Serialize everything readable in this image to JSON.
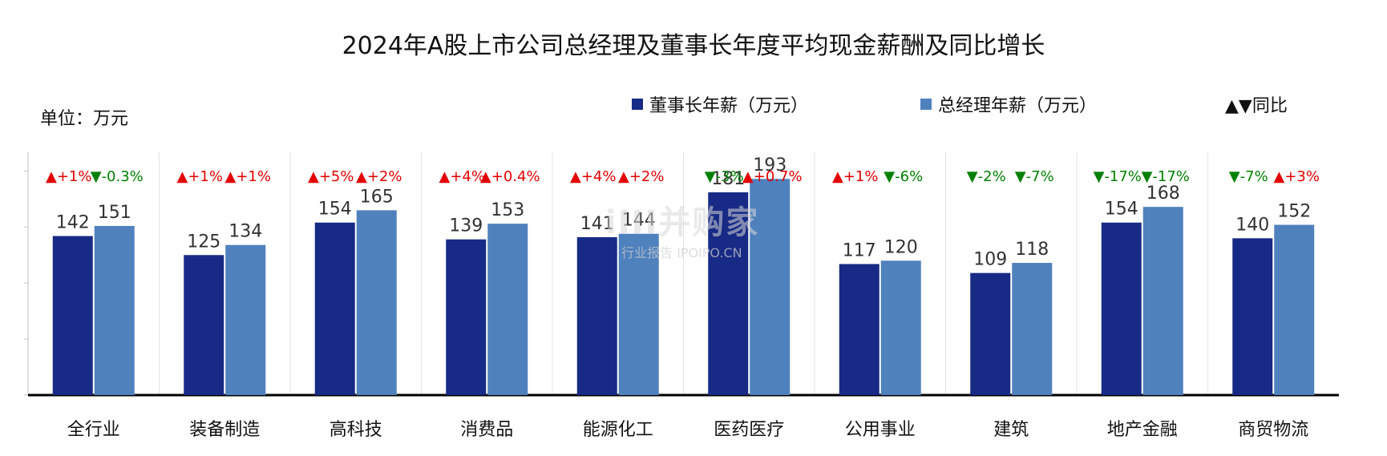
{
  "title": "2024年A股上市公司总经理及董事长年度平均现金薪酬及同比增长",
  "unit_label": "单位：万元",
  "legend": {
    "chairman": "董事长年薪（万元）",
    "gm": "总经理年薪（万元）",
    "yoy": "▲▼同比"
  },
  "watermark": {
    "logo": "iIII并购家",
    "sub": "行业报告 IPOIPO.CN"
  },
  "colors": {
    "chairman": "#172a85",
    "gm": "#4f81bd",
    "up": "#e30000",
    "down": "#008000",
    "axis": "#000000"
  },
  "chart_data": {
    "type": "bar",
    "title": "2024年A股上市公司总经理及董事长年度平均现金薪酬及同比增长",
    "categories": [
      "全行业",
      "装备制造",
      "高科技",
      "消费品",
      "能源化工",
      "医药医疗",
      "公用事业",
      "建筑",
      "地产金融",
      "商贸物流"
    ],
    "series": [
      {
        "name": "董事长年薪（万元）",
        "values": [
          142,
          125,
          154,
          139,
          141,
          181,
          117,
          109,
          154,
          140
        ],
        "yoy": [
          "▲+1%",
          "▲+1%",
          "▲+5%",
          "▲+4%",
          "▲+4%",
          "▼-3%",
          "▲+1%",
          "▼-2%",
          "▼-17%",
          "▼-7%"
        ]
      },
      {
        "name": "总经理年薪（万元）",
        "values": [
          151,
          134,
          165,
          153,
          144,
          193,
          120,
          118,
          168,
          152
        ],
        "yoy": [
          "▼-0.3%",
          "▲+1%",
          "▲+2%",
          "▲+0.4%",
          "▲+2%",
          "▲+0.7%",
          "▼-6%",
          "▼-7%",
          "▼-17%",
          "▲+3%"
        ]
      }
    ],
    "ylim": [
      0,
      200
    ],
    "ylabel": "单位：万元",
    "grid": false,
    "legend_position": "top-right"
  }
}
